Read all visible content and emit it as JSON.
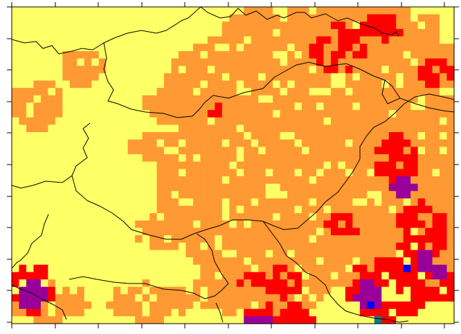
{
  "map": {
    "grid_cols": 61,
    "grid_rows": 43,
    "class_colors": {
      "0": "#FFFF66",
      "1": "#FF9933",
      "2": "#FF0000",
      "3": "#990099",
      "4": "#0000FF",
      "5": "#008080"
    },
    "frame_color": "#000000",
    "border_color": "#000000"
  }
}
